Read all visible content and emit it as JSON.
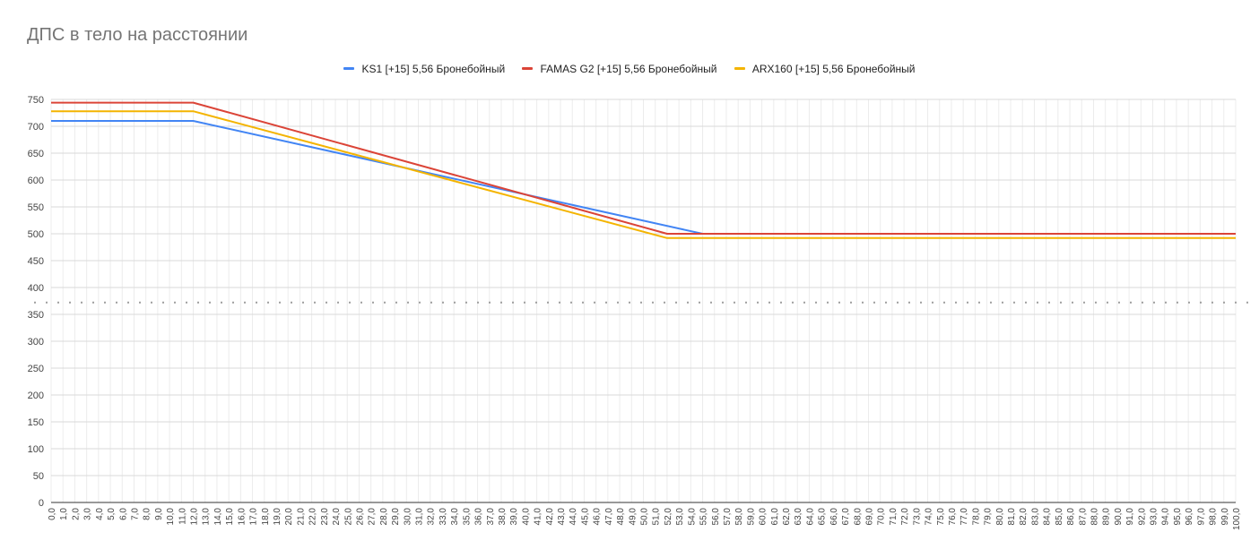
{
  "chart_data": {
    "type": "line",
    "title": "ДПС в тело на расстоянии",
    "xlabel": "",
    "ylabel": "",
    "x_start": 0,
    "x_end": 100,
    "x_step": 1,
    "x_tick_format": "one-decimal-comma",
    "ylim": [
      0,
      750
    ],
    "y_ticks": [
      0,
      50,
      100,
      150,
      200,
      250,
      300,
      350,
      400,
      450,
      500,
      550,
      600,
      650,
      700,
      750
    ],
    "grid": true,
    "legend_position": "top",
    "reference_line": {
      "y": 372,
      "style": "dotted"
    },
    "series": [
      {
        "name": "KS1 [+15] 5,56 Бронебойный",
        "color": "#4285f4",
        "points": [
          [
            0,
            710
          ],
          [
            12,
            710
          ],
          [
            55,
            500
          ],
          [
            100,
            500
          ]
        ]
      },
      {
        "name": "FAMAS G2 [+15] 5,56 Бронебойный",
        "color": "#db4437",
        "points": [
          [
            0,
            744
          ],
          [
            12,
            744
          ],
          [
            52,
            500
          ],
          [
            100,
            500
          ]
        ]
      },
      {
        "name": "ARX160 [+15] 5,56 Бронебойный",
        "color": "#f4b400",
        "points": [
          [
            0,
            728
          ],
          [
            12,
            728
          ],
          [
            52,
            492
          ],
          [
            100,
            492
          ]
        ]
      }
    ]
  }
}
